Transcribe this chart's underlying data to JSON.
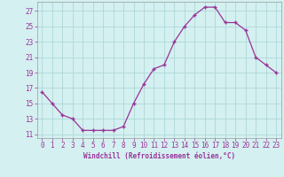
{
  "x": [
    0,
    1,
    2,
    3,
    4,
    5,
    6,
    7,
    8,
    9,
    10,
    11,
    12,
    13,
    14,
    15,
    16,
    17,
    18,
    19,
    20,
    21,
    22,
    23
  ],
  "y": [
    16.5,
    15.0,
    13.5,
    13.0,
    11.5,
    11.5,
    11.5,
    11.5,
    12.0,
    15.0,
    17.5,
    19.5,
    20.0,
    23.0,
    25.0,
    26.5,
    27.5,
    27.5,
    25.5,
    25.5,
    24.5,
    21.0,
    20.0,
    19.0
  ],
  "line_color": "#993399",
  "marker": "+",
  "marker_size": 3,
  "background_color": "#d4f0f0",
  "grid_color": "#aed8d8",
  "ylabel_ticks": [
    11,
    13,
    15,
    17,
    19,
    21,
    23,
    25,
    27
  ],
  "xlabel_ticks": [
    0,
    1,
    2,
    3,
    4,
    5,
    6,
    7,
    8,
    9,
    10,
    11,
    12,
    13,
    14,
    15,
    16,
    17,
    18,
    19,
    20,
    21,
    22,
    23
  ],
  "xlabel": "Windchill (Refroidissement éolien,°C)",
  "xlim": [
    -0.5,
    23.5
  ],
  "ylim": [
    10.5,
    28.2
  ],
  "tick_fontsize": 5.5,
  "xlabel_fontsize": 5.5
}
